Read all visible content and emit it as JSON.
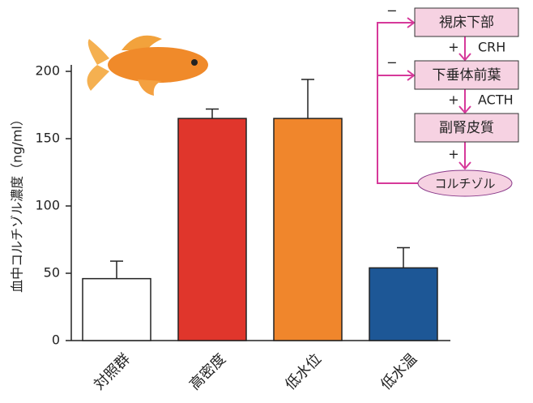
{
  "chart_data": {
    "type": "bar",
    "y_label": "血中コルチゾル濃度（ng/ml）",
    "categories": [
      "対照群",
      "高密度",
      "低水位",
      "低水温"
    ],
    "values": [
      46,
      165,
      165,
      54
    ],
    "errors": [
      13,
      7,
      29,
      15
    ],
    "colors": [
      "#ffffff",
      "#e0362c",
      "#f0862c",
      "#1d5796"
    ],
    "ylim": [
      0,
      200
    ],
    "yticks": [
      0,
      50,
      100,
      150,
      200
    ],
    "diagram": {
      "nodes": [
        "視床下部",
        "下垂体前葉",
        "副腎皮質",
        "コルチゾル"
      ],
      "signals": [
        "CRH",
        "ACTH"
      ],
      "plus": "+",
      "minus": "−"
    }
  }
}
